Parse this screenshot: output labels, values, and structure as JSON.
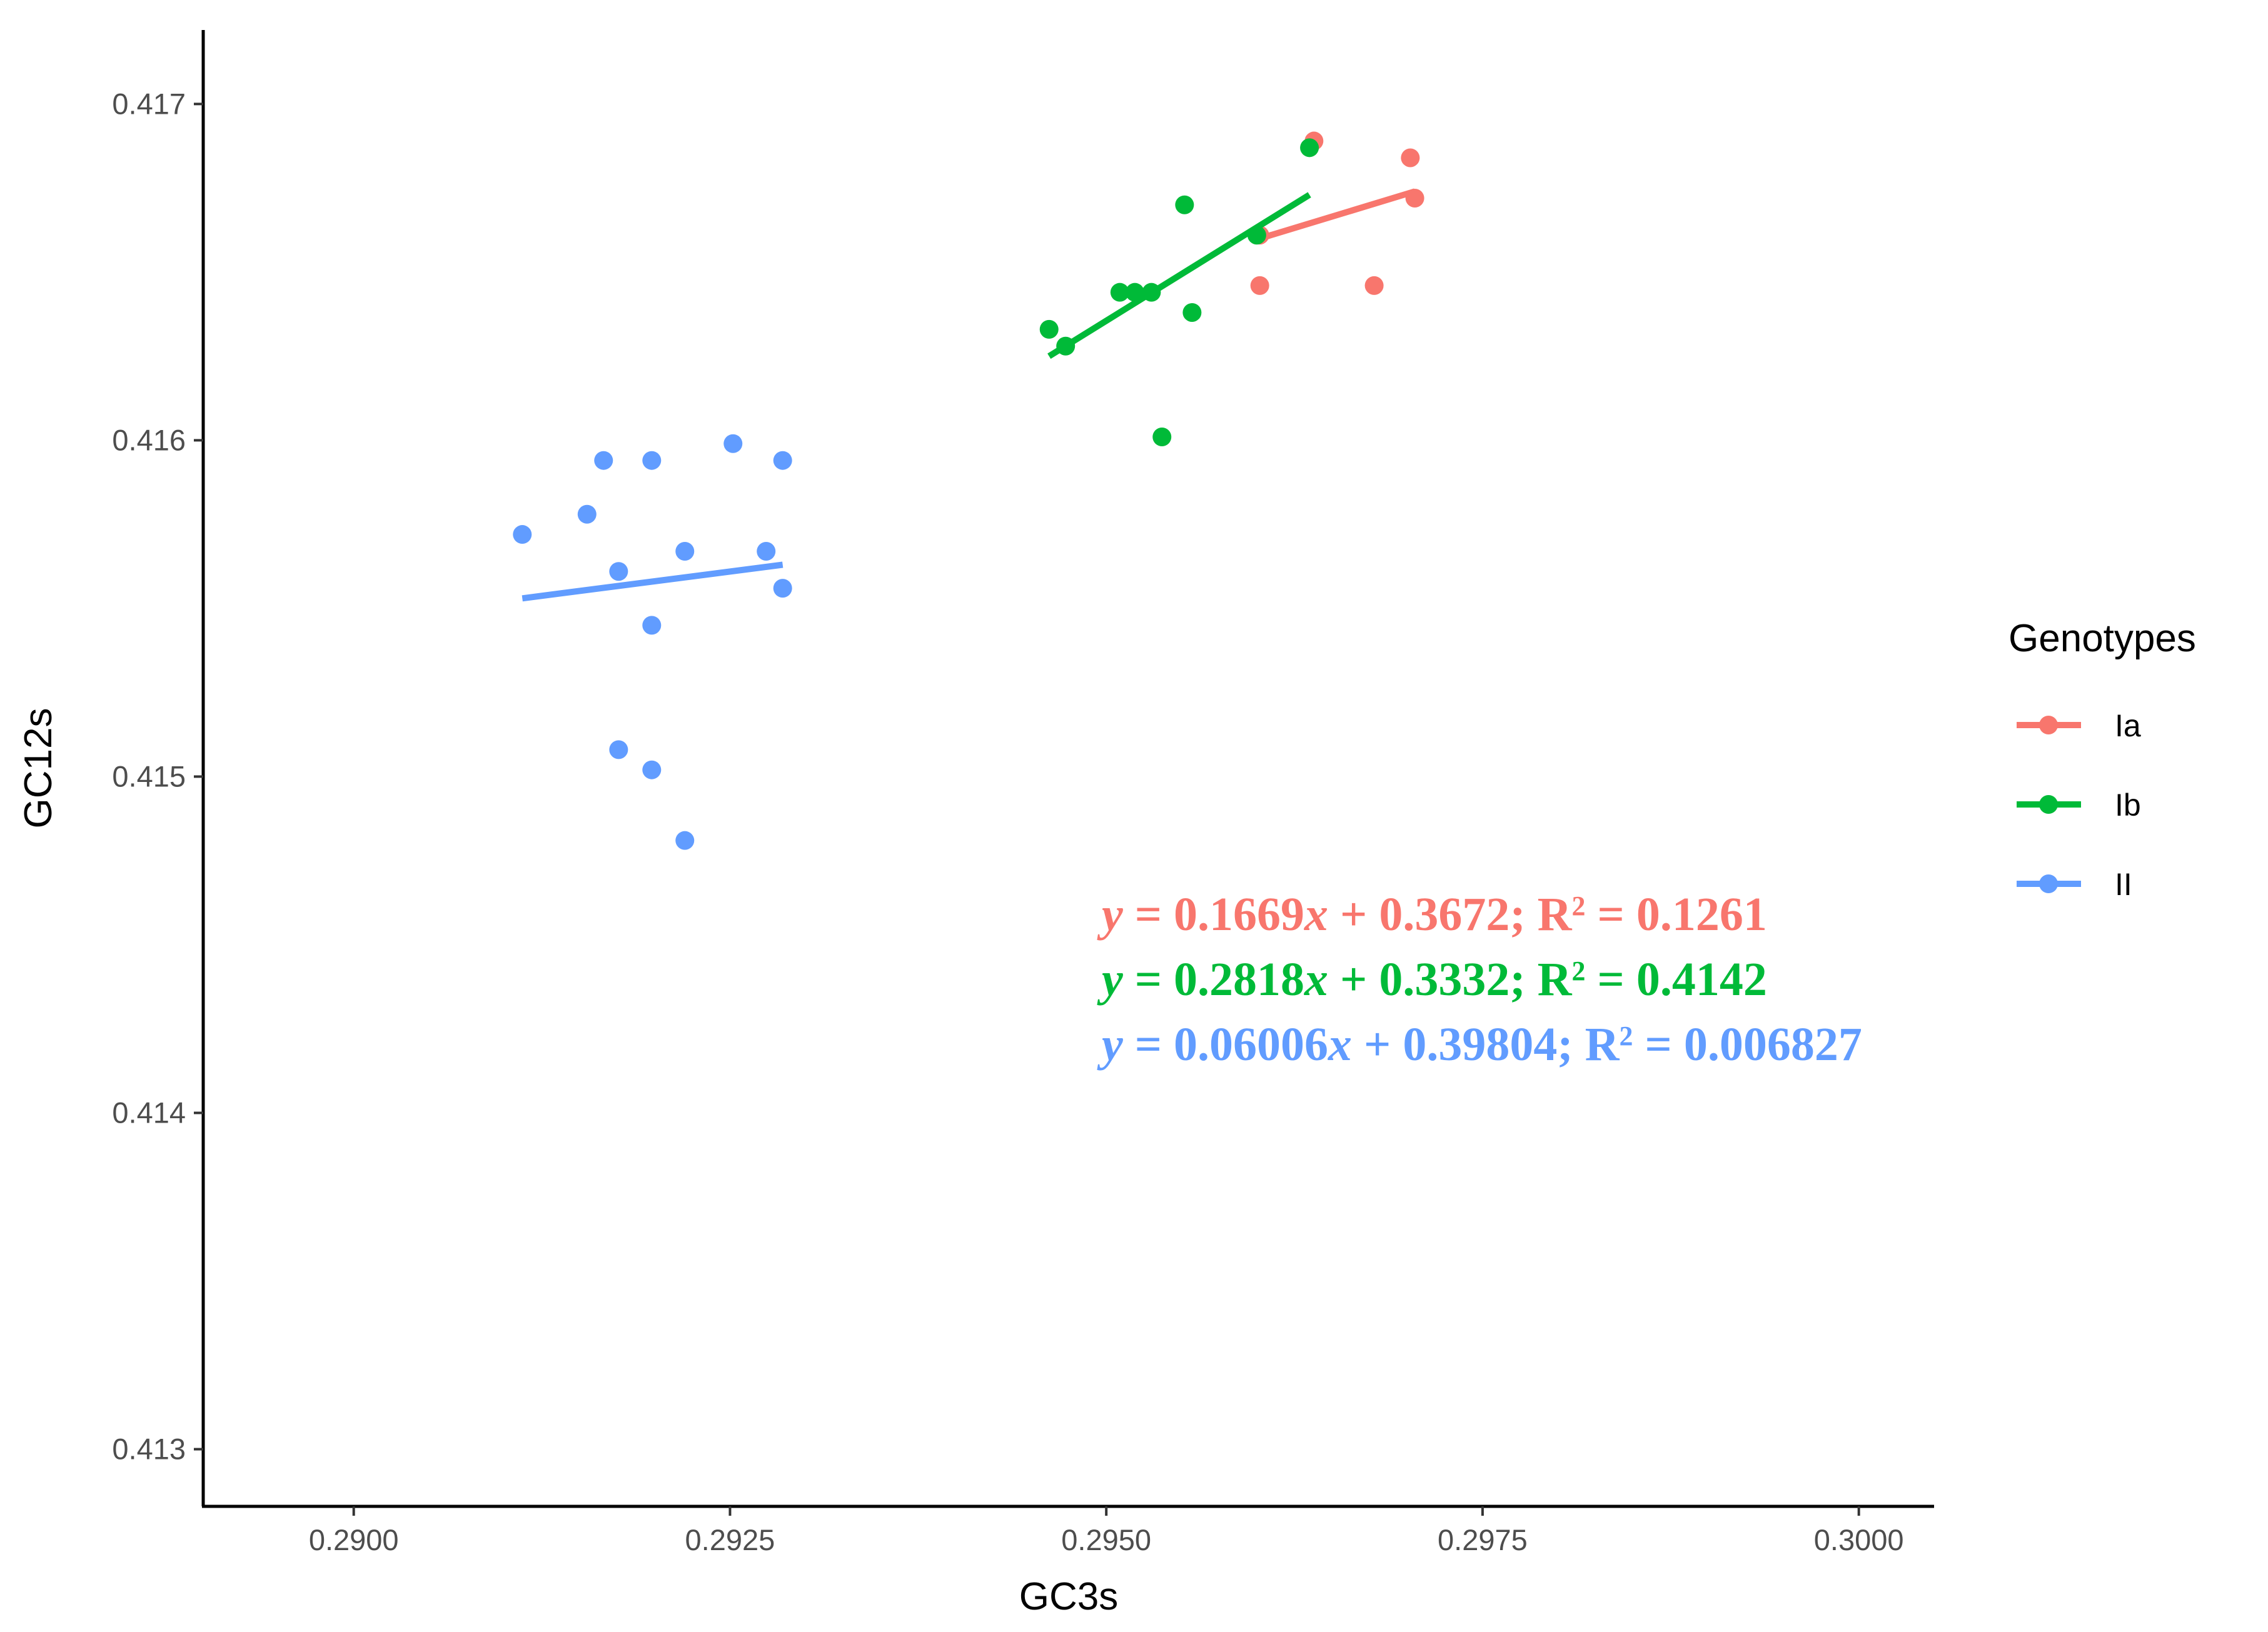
{
  "chart_data": {
    "type": "scatter",
    "xlabel": "GC3s",
    "ylabel": "GC12s",
    "xlim": [
      0.289,
      0.3005
    ],
    "ylim": [
      0.41283,
      0.41722
    ],
    "x_ticks": [
      0.29,
      0.2925,
      0.295,
      0.2975,
      0.3
    ],
    "x_tick_labels": [
      "0.2900",
      "0.2925",
      "0.2950",
      "0.2975",
      "0.3000"
    ],
    "y_ticks": [
      0.413,
      0.414,
      0.415,
      0.416,
      0.417
    ],
    "y_tick_labels": [
      "0.413",
      "0.414",
      "0.415",
      "0.416",
      "0.417"
    ],
    "grid": false,
    "legend": {
      "title": "Genotypes",
      "placement": "right",
      "entries": [
        "Ia",
        "Ib",
        "II"
      ]
    },
    "series": [
      {
        "name": "Ia",
        "color": "#F8766D",
        "points": [
          [
            0.29638,
            0.41689
          ],
          [
            0.29702,
            0.41684
          ],
          [
            0.29705,
            0.41672
          ],
          [
            0.29602,
            0.41646
          ],
          [
            0.29678,
            0.41646
          ],
          [
            0.29602,
            0.41661
          ]
        ],
        "fit_line": [
          [
            0.29602,
            0.4166
          ],
          [
            0.29705,
            0.41674
          ]
        ],
        "equation": {
          "pre": "y",
          "mid": " = 0.1669",
          "var": "x",
          "post": " + 0.3672; R",
          "sup": "2",
          "tail": " = 0.1261"
        }
      },
      {
        "name": "Ib",
        "color": "#00BA38",
        "points": [
          [
            0.29635,
            0.41687
          ],
          [
            0.29552,
            0.4167
          ],
          [
            0.296,
            0.41661
          ],
          [
            0.29509,
            0.41644
          ],
          [
            0.29519,
            0.41644
          ],
          [
            0.2953,
            0.41644
          ],
          [
            0.29557,
            0.41638
          ],
          [
            0.29462,
            0.41633
          ],
          [
            0.29473,
            0.41628
          ],
          [
            0.29537,
            0.41601
          ]
        ],
        "fit_line": [
          [
            0.29462,
            0.41625
          ],
          [
            0.29635,
            0.41673
          ]
        ],
        "equation": {
          "pre": "y",
          "mid": " = 0.2818",
          "var": "x",
          "post": " + 0.3332; R",
          "sup": "2",
          "tail": " = 0.4142"
        }
      },
      {
        "name": "II",
        "color": "#619CFF",
        "points": [
          [
            0.29252,
            0.41599
          ],
          [
            0.29166,
            0.41594
          ],
          [
            0.29198,
            0.41594
          ],
          [
            0.29285,
            0.41594
          ],
          [
            0.29155,
            0.41578
          ],
          [
            0.29112,
            0.41572
          ],
          [
            0.2922,
            0.41567
          ],
          [
            0.29274,
            0.41567
          ],
          [
            0.29176,
            0.41561
          ],
          [
            0.29285,
            0.41556
          ],
          [
            0.29198,
            0.41545
          ],
          [
            0.29176,
            0.41508
          ],
          [
            0.29198,
            0.41502
          ],
          [
            0.2922,
            0.41481
          ]
        ],
        "fit_line": [
          [
            0.29112,
            0.41553
          ],
          [
            0.29285,
            0.41563
          ]
        ],
        "equation": {
          "pre": "y",
          "mid": " = 0.06006",
          "var": "x",
          "post": " + 0.39804; R",
          "sup": "2",
          "tail": " = 0.006827"
        }
      }
    ]
  }
}
